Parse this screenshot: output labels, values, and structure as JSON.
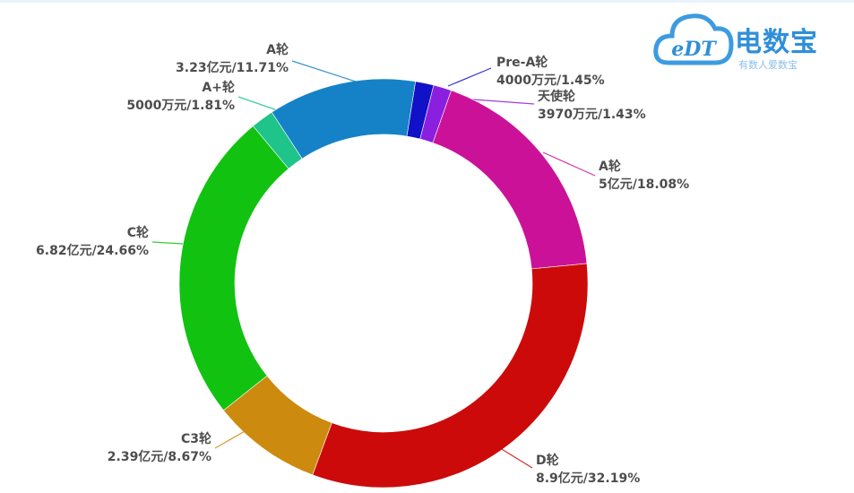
{
  "logo": {
    "brand_name": "电数宝",
    "badge_text": "eDT",
    "tagline": "有数人爱数宝"
  },
  "chart_data": {
    "type": "pie",
    "donut": true,
    "slices": [
      {
        "label": "Pre-A轮",
        "value_text": "4000万元/1.45%",
        "percent": 1.45,
        "color": "#1111c8"
      },
      {
        "label": "天使轮",
        "value_text": "3970万元/1.43%",
        "percent": 1.43,
        "color": "#8b1fe0"
      },
      {
        "label": "A轮",
        "value_text": "5亿元/18.08%",
        "percent": 18.08,
        "color": "#cc1199"
      },
      {
        "label": "D轮",
        "value_text": "8.9亿元/32.19%",
        "percent": 32.19,
        "color": "#cc0a0a"
      },
      {
        "label": "C3轮",
        "value_text": "2.39亿元/8.67%",
        "percent": 8.67,
        "color": "#cc8a0e"
      },
      {
        "label": "C轮",
        "value_text": "6.82亿元/24.66%",
        "percent": 24.66,
        "color": "#11c211"
      },
      {
        "label": "A+轮",
        "value_text": "5000万元/1.81%",
        "percent": 1.81,
        "color": "#1ec48a"
      },
      {
        "label": "A轮",
        "value_text": "3.23亿元/11.71%",
        "percent": 11.71,
        "color": "#1582c8"
      }
    ]
  }
}
